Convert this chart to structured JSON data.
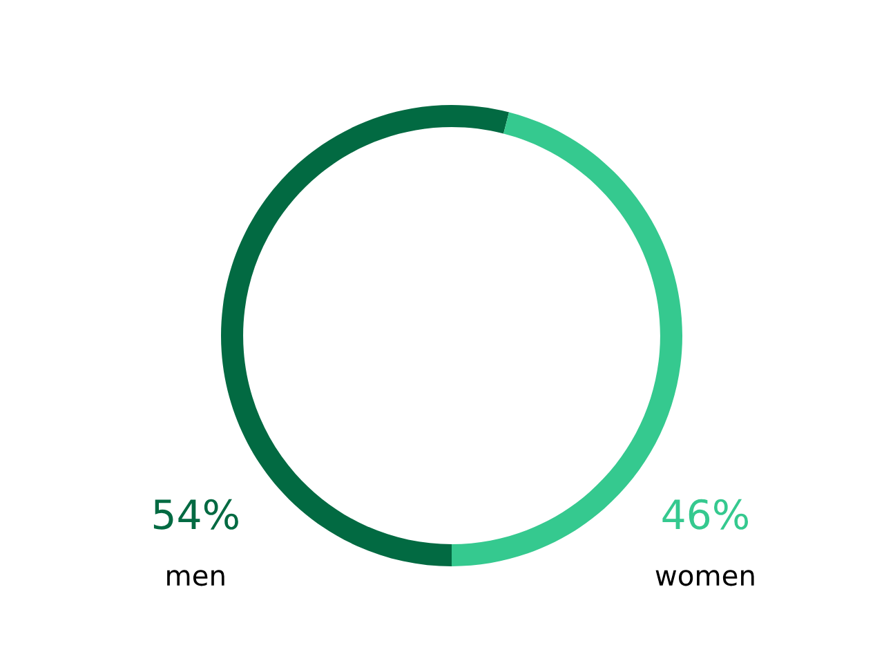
{
  "chart_data": {
    "type": "donut",
    "categories": [
      "men",
      "women"
    ],
    "values": [
      54,
      46
    ],
    "colors": [
      "#026a42",
      "#35c98f"
    ],
    "value_labels": [
      "54%",
      "46%"
    ],
    "legend": false
  }
}
